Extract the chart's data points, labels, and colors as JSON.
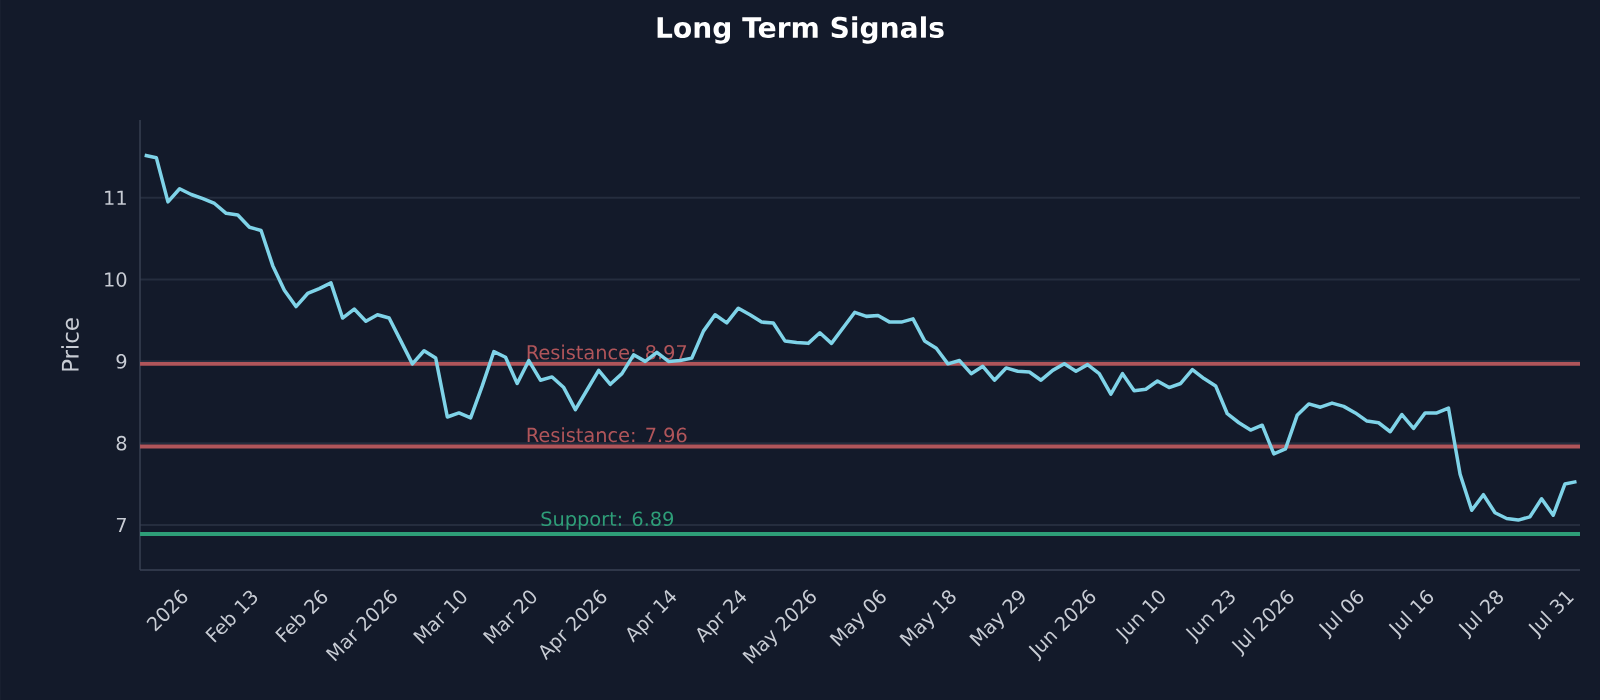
{
  "chart_data": {
    "type": "line",
    "title": "Long Term Signals",
    "ylabel": "Price",
    "categories": [
      null,
      null,
      null,
      "2026",
      null,
      null,
      null,
      null,
      null,
      "Feb 13",
      null,
      null,
      null,
      null,
      null,
      "Feb 26",
      null,
      null,
      null,
      null,
      null,
      "Mar 2026",
      null,
      null,
      null,
      null,
      null,
      "Mar 10",
      null,
      null,
      null,
      null,
      null,
      "Mar 20",
      null,
      null,
      null,
      null,
      null,
      "Apr 2026",
      null,
      null,
      null,
      null,
      null,
      "Apr 14",
      null,
      null,
      null,
      null,
      null,
      "Apr 24",
      null,
      null,
      null,
      null,
      null,
      "May 2026",
      null,
      null,
      null,
      null,
      null,
      "May 06",
      null,
      null,
      null,
      null,
      null,
      "May 18",
      null,
      null,
      null,
      null,
      null,
      "May 29",
      null,
      null,
      null,
      null,
      null,
      "Jun 2026",
      null,
      null,
      null,
      null,
      null,
      "Jun 10",
      null,
      null,
      null,
      null,
      null,
      "Jun 23",
      null,
      null,
      null,
      null,
      "Jul 2026",
      null,
      null,
      null,
      null,
      null,
      "Jul 06",
      null,
      null,
      null,
      null,
      null,
      "Jul 16",
      null,
      null,
      null,
      null,
      null,
      "Jul 28",
      null,
      null,
      null,
      null,
      null,
      "Jul 31",
      null
    ],
    "series": [
      {
        "color": "#7fd3e8",
        "values": [
          11.52,
          11.49,
          10.95,
          11.11,
          11.04,
          10.99,
          10.93,
          10.81,
          10.79,
          10.64,
          10.6,
          10.17,
          9.87,
          9.67,
          9.83,
          9.89,
          9.96,
          9.53,
          9.64,
          9.49,
          9.57,
          9.53,
          9.25,
          8.97,
          9.13,
          9.04,
          8.32,
          8.37,
          8.31,
          8.7,
          9.12,
          9.05,
          8.73,
          9.01,
          8.77,
          8.81,
          8.68,
          8.41,
          8.65,
          8.89,
          8.72,
          8.85,
          9.08,
          9.0,
          9.11,
          9.0,
          9.01,
          9.04,
          9.37,
          9.57,
          9.47,
          9.65,
          9.57,
          9.48,
          9.47,
          9.25,
          9.23,
          9.22,
          9.35,
          9.22,
          9.41,
          9.6,
          9.55,
          9.56,
          9.48,
          9.48,
          9.52,
          9.25,
          9.16,
          8.97,
          9.01,
          8.85,
          8.94,
          8.77,
          8.92,
          8.88,
          8.87,
          8.77,
          8.89,
          8.97,
          8.88,
          8.96,
          8.85,
          8.6,
          8.85,
          8.64,
          8.66,
          8.76,
          8.68,
          8.73,
          8.9,
          8.79,
          8.7,
          8.36,
          8.25,
          8.16,
          8.22,
          7.87,
          7.93,
          8.34,
          8.48,
          8.44,
          8.49,
          8.45,
          8.37,
          8.27,
          8.25,
          8.14,
          8.35,
          8.18,
          8.37,
          8.37,
          8.43,
          7.62,
          7.18,
          7.37,
          7.15,
          7.08,
          7.06,
          7.1,
          7.32,
          7.12,
          7.5,
          7.53
        ]
      }
    ],
    "ylim": [
      6.45,
      11.95
    ],
    "yticks": [
      7,
      8,
      9,
      10,
      11
    ],
    "grid": "y",
    "line_style": "solid",
    "marker": "none",
    "ref_lines": [
      {
        "axis": "y",
        "value": 8.97,
        "label": "Resistance: 8.97",
        "color": "#b0555a",
        "line_style": "solid"
      },
      {
        "axis": "y",
        "value": 7.96,
        "label": "Resistance: 7.96",
        "color": "#b0555a",
        "line_style": "solid"
      },
      {
        "axis": "y",
        "value": 6.89,
        "label": "Support: 6.89",
        "color": "#2e9e78",
        "line_style": "solid"
      }
    ]
  }
}
